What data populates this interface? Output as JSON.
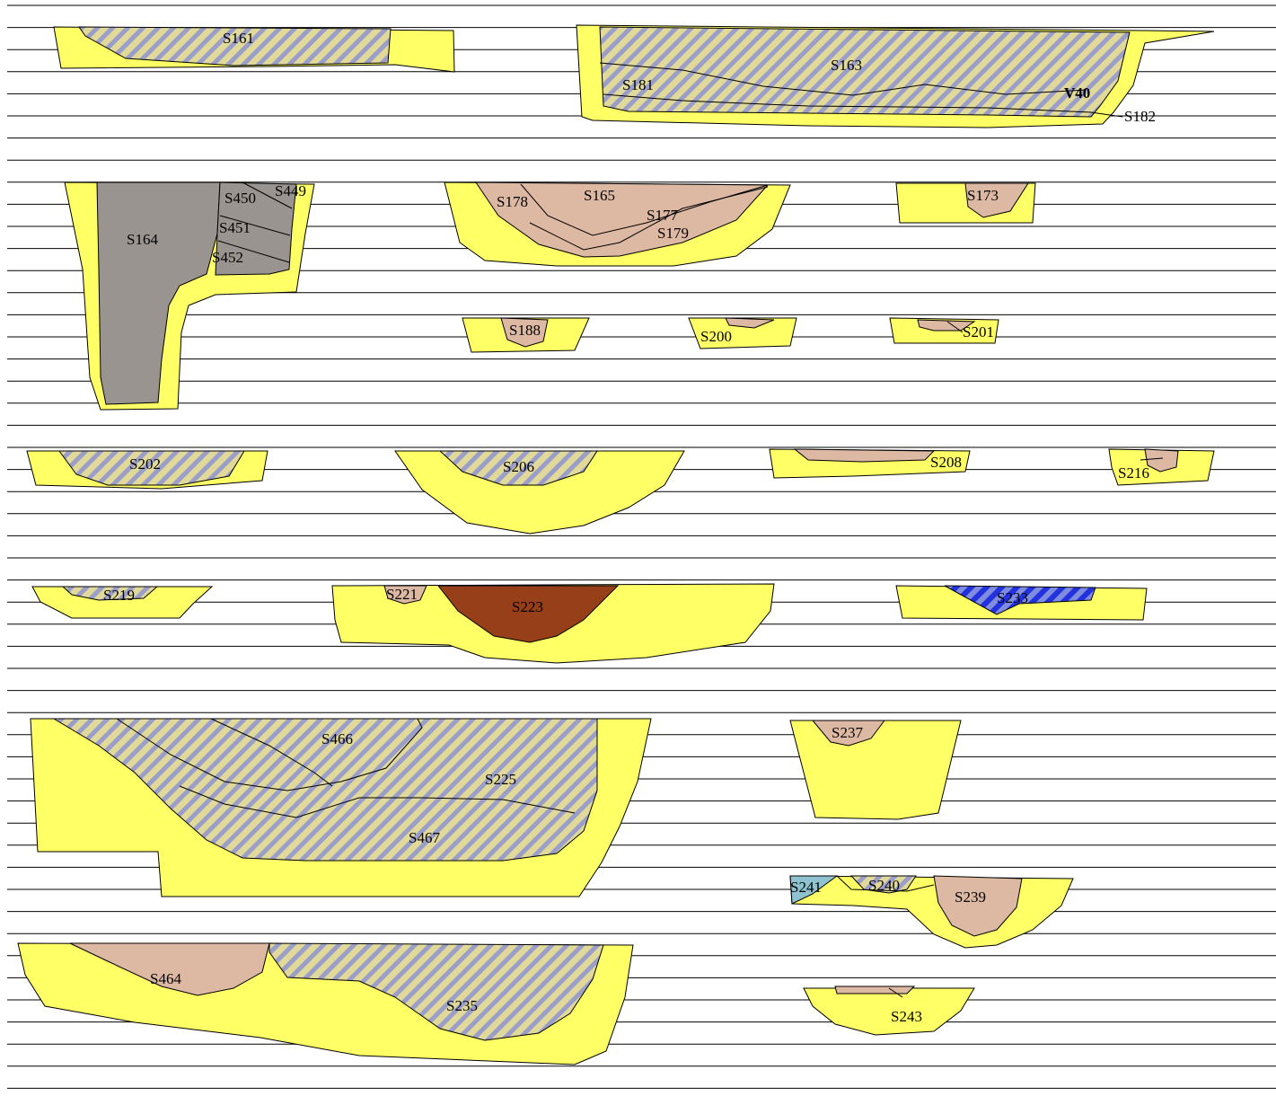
{
  "colors": {
    "sand": "#ffff66",
    "hatch_a": "#9a9ec8",
    "hatch_b": "#e0d99a",
    "pink": "#ddb8a3",
    "grey": "#999490",
    "brown": "#963f18",
    "teal": "#8ec2cf",
    "blue": "#3344dd"
  },
  "labels": {
    "S161": "S161",
    "S163": "S163",
    "S181": "S181",
    "V40": "V40",
    "S182": "S182",
    "S164": "S164",
    "S450": "S450",
    "S449": "S449",
    "S451": "S451",
    "S452": "S452",
    "S178": "S178",
    "S165": "S165",
    "S177": "S177",
    "S179": "S179",
    "S173": "S173",
    "S188": "S188",
    "S200": "S200",
    "S201": "S201",
    "S202": "S202",
    "S206": "S206",
    "S208": "S208",
    "S216": "S216",
    "S219": "S219",
    "S221": "S221",
    "S223": "S223",
    "S233": "S233",
    "S466": "S466",
    "S225": "S225",
    "S467": "S467",
    "S237": "S237",
    "S241": "S241",
    "S240": "S240",
    "S239": "S239",
    "S464": "S464",
    "S235": "S235",
    "S243": "S243"
  }
}
